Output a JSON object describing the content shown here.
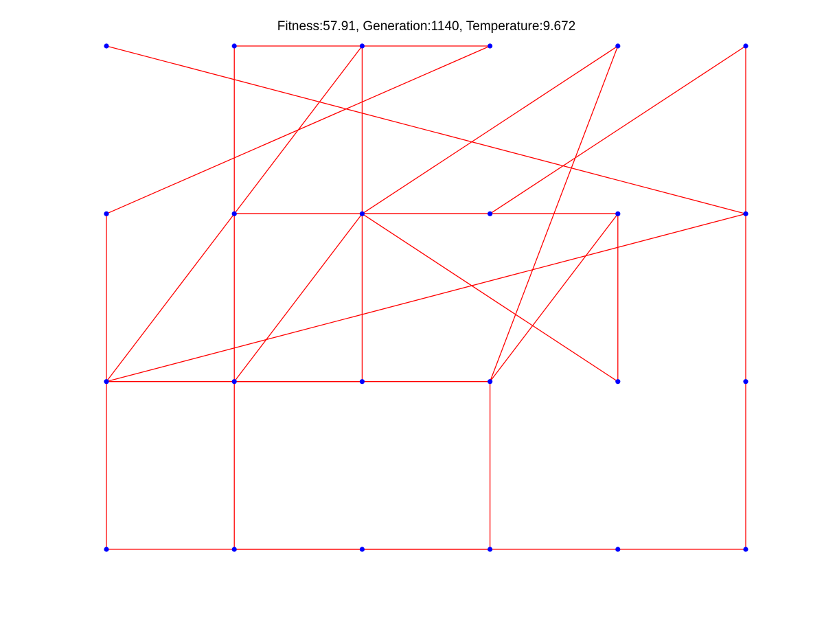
{
  "chart_data": {
    "type": "line",
    "title": "Fitness:57.91, Generation:1140, Temperature:9.672",
    "xlabel": "",
    "ylabel": "",
    "xlim": [
      1,
      6
    ],
    "ylim": [
      1,
      4
    ],
    "grid": false,
    "axes_visible": false,
    "colors": {
      "route": "#ff0000",
      "city": "#0000ff"
    },
    "series": [
      {
        "name": "",
        "role": "route",
        "x": [
          1,
          6,
          6,
          5,
          4,
          2,
          1,
          1,
          4,
          2,
          2,
          5,
          5,
          3,
          5,
          4,
          3,
          2,
          2,
          3,
          4,
          4,
          5,
          2,
          1,
          3,
          3,
          2,
          2,
          3,
          4,
          6,
          6,
          1
        ],
        "y": [
          4,
          3,
          1,
          1,
          1,
          1,
          1,
          3,
          4,
          4,
          3,
          3,
          2,
          3,
          4,
          2,
          2,
          2,
          1,
          1,
          1,
          2,
          3,
          3,
          2,
          2,
          4,
          3,
          2,
          3,
          3,
          4,
          3,
          2
        ]
      },
      {
        "name": "",
        "role": "cities",
        "x": [
          1,
          2,
          3,
          4,
          5,
          6,
          1,
          2,
          3,
          4,
          5,
          6,
          1,
          2,
          3,
          4,
          5,
          6,
          1,
          2,
          3,
          4,
          5,
          6
        ],
        "y": [
          4,
          4,
          4,
          4,
          4,
          4,
          3,
          3,
          3,
          3,
          3,
          3,
          2,
          2,
          2,
          2,
          2,
          2,
          1,
          1,
          1,
          1,
          1,
          1
        ]
      }
    ]
  }
}
